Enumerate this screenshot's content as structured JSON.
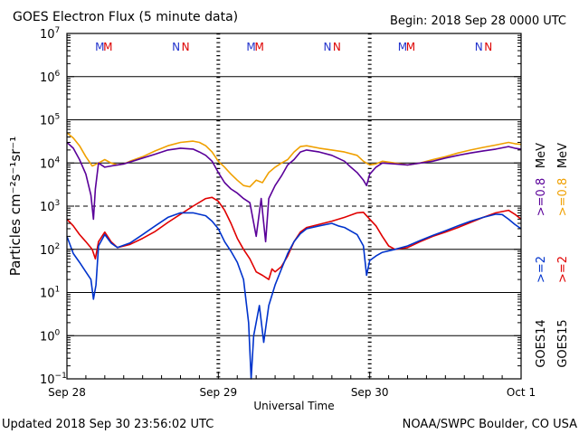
{
  "header": {
    "title": "GOES Electron Flux (5 minute data)",
    "begin": "Begin: 2018 Sep 28 0000 UTC"
  },
  "footer": {
    "updated": "Updated 2018 Sep 30 23:56:02 UTC",
    "credit": "NOAA/SWPC Boulder, CO USA"
  },
  "colors": {
    "goes14_08": "#5a0099",
    "goes15_08": "#f0a000",
    "goes14_2": "#0033cc",
    "goes15_2": "#e00000",
    "marker_m": [
      "#2233cc",
      "#dd0000"
    ],
    "marker_n": [
      "#2233cc",
      "#dd0000"
    ]
  },
  "chart_data": {
    "type": "line",
    "title": "GOES Electron Flux (5 minute data)",
    "xlabel": "Universal Time",
    "ylabel": "Particles cm⁻²s⁻¹sr⁻¹",
    "ylog": true,
    "xlim": [
      0,
      72
    ],
    "ylim": [
      0.1,
      10000000
    ],
    "grid": "horizontal at decades",
    "x_ticks": [
      {
        "t": 0,
        "label": "Sep 28"
      },
      {
        "t": 24,
        "label": "Sep 29"
      },
      {
        "t": 48,
        "label": "Sep 30"
      },
      {
        "t": 72,
        "label": "Oct 1"
      }
    ],
    "y_ticks": [
      {
        "v": 0.1,
        "base": "10",
        "exp": "−1"
      },
      {
        "v": 1,
        "base": "10",
        "exp": "0"
      },
      {
        "v": 10,
        "base": "10",
        "exp": "1"
      },
      {
        "v": 100,
        "base": "10",
        "exp": "2"
      },
      {
        "v": 1000,
        "base": "10",
        "exp": "3"
      },
      {
        "v": 10000,
        "base": "10",
        "exp": "4"
      },
      {
        "v": 100000,
        "base": "10",
        "exp": "5"
      },
      {
        "v": 1000000,
        "base": "10",
        "exp": "6"
      },
      {
        "v": 10000000,
        "base": "10",
        "exp": "7"
      }
    ],
    "threshold": 1000,
    "day_markers": [
      {
        "t": 5.2,
        "label": "M",
        "color_index": 0
      },
      {
        "t": 6.5,
        "label": "M",
        "color_index": 1
      },
      {
        "t": 17.3,
        "label": "N",
        "color_index": 0
      },
      {
        "t": 18.8,
        "label": "N",
        "color_index": 1
      },
      {
        "t": 29.2,
        "label": "M",
        "color_index": 0
      },
      {
        "t": 30.5,
        "label": "M",
        "color_index": 1
      },
      {
        "t": 41.3,
        "label": "N",
        "color_index": 0
      },
      {
        "t": 42.8,
        "label": "N",
        "color_index": 1
      },
      {
        "t": 53.2,
        "label": "M",
        "color_index": 0
      },
      {
        "t": 54.5,
        "label": "M",
        "color_index": 1
      },
      {
        "t": 65.3,
        "label": "N",
        "color_index": 0
      },
      {
        "t": 66.8,
        "label": "N",
        "color_index": 1
      }
    ],
    "legend": {
      "position": "right, vertical",
      "groups": [
        {
          "label": "GOES14",
          "items": [
            {
              "text": ">=2",
              "color_key": "goes14_2"
            },
            {
              "text": ">=0.8",
              "color_key": "goes14_08"
            }
          ]
        },
        {
          "label": "GOES15",
          "items": [
            {
              "text": ">=2",
              "color_key": "goes15_2"
            },
            {
              "text": ">=0.8",
              "color_key": "goes15_08"
            }
          ]
        }
      ],
      "unit": "MeV"
    },
    "series": [
      {
        "name": "GOES15 >=0.8 MeV",
        "color_key": "goes15_08",
        "points": [
          [
            0,
            50000
          ],
          [
            1,
            38000
          ],
          [
            2,
            25000
          ],
          [
            3,
            14000
          ],
          [
            4,
            8500
          ],
          [
            5,
            10000
          ],
          [
            6,
            12000
          ],
          [
            7,
            10000
          ],
          [
            8,
            9000
          ],
          [
            9,
            9500
          ],
          [
            10,
            11000
          ],
          [
            12,
            14000
          ],
          [
            14,
            19000
          ],
          [
            16,
            25000
          ],
          [
            18,
            30000
          ],
          [
            20,
            32000
          ],
          [
            21,
            30000
          ],
          [
            22,
            25000
          ],
          [
            23,
            18000
          ],
          [
            24,
            11000
          ],
          [
            25,
            8000
          ],
          [
            26,
            5500
          ],
          [
            27,
            4000
          ],
          [
            28,
            3000
          ],
          [
            29,
            2800
          ],
          [
            30,
            4000
          ],
          [
            31,
            3500
          ],
          [
            32,
            6000
          ],
          [
            33,
            8000
          ],
          [
            34,
            10000
          ],
          [
            35,
            12000
          ],
          [
            36,
            18000
          ],
          [
            37,
            24000
          ],
          [
            38,
            25000
          ],
          [
            40,
            22000
          ],
          [
            42,
            20000
          ],
          [
            44,
            18000
          ],
          [
            46,
            15000
          ],
          [
            47,
            11000
          ],
          [
            48,
            9000
          ],
          [
            49,
            9500
          ],
          [
            50,
            11000
          ],
          [
            52,
            10000
          ],
          [
            54,
            9000
          ],
          [
            56,
            10000
          ],
          [
            58,
            12000
          ],
          [
            60,
            14000
          ],
          [
            62,
            17000
          ],
          [
            64,
            20000
          ],
          [
            66,
            23000
          ],
          [
            68,
            26000
          ],
          [
            70,
            30000
          ],
          [
            71,
            28000
          ],
          [
            72,
            27000
          ]
        ]
      },
      {
        "name": "GOES14 >=0.8 MeV",
        "color_key": "goes14_08",
        "points": [
          [
            0,
            30000
          ],
          [
            1,
            22000
          ],
          [
            2,
            12000
          ],
          [
            3,
            5500
          ],
          [
            3.8,
            1800
          ],
          [
            4.2,
            500
          ],
          [
            4.5,
            2500
          ],
          [
            5,
            10000
          ],
          [
            6,
            8000
          ],
          [
            7,
            8500
          ],
          [
            8,
            9000
          ],
          [
            9,
            9500
          ],
          [
            10,
            10500
          ],
          [
            12,
            13000
          ],
          [
            14,
            16000
          ],
          [
            16,
            20000
          ],
          [
            18,
            22000
          ],
          [
            20,
            21000
          ],
          [
            21,
            18000
          ],
          [
            22,
            15000
          ],
          [
            23,
            11000
          ],
          [
            24,
            6000
          ],
          [
            25,
            3500
          ],
          [
            26,
            2500
          ],
          [
            27,
            2000
          ],
          [
            28,
            1500
          ],
          [
            29,
            1200
          ],
          [
            30,
            200
          ],
          [
            30.8,
            1500
          ],
          [
            31.5,
            150
          ],
          [
            32,
            1500
          ],
          [
            33,
            3000
          ],
          [
            34,
            5000
          ],
          [
            35,
            9000
          ],
          [
            36,
            12000
          ],
          [
            37,
            18000
          ],
          [
            38,
            20000
          ],
          [
            40,
            18000
          ],
          [
            42,
            15000
          ],
          [
            44,
            11000
          ],
          [
            45,
            8000
          ],
          [
            46,
            6000
          ],
          [
            47,
            4000
          ],
          [
            47.5,
            3000
          ],
          [
            48,
            5500
          ],
          [
            49,
            8000
          ],
          [
            50,
            10000
          ],
          [
            52,
            9500
          ],
          [
            54,
            9000
          ],
          [
            56,
            10000
          ],
          [
            58,
            11000
          ],
          [
            60,
            13000
          ],
          [
            62,
            15000
          ],
          [
            64,
            17000
          ],
          [
            66,
            19000
          ],
          [
            68,
            21000
          ],
          [
            70,
            24000
          ],
          [
            71,
            22000
          ],
          [
            72,
            21000
          ]
        ]
      },
      {
        "name": "GOES15 >=2 MeV",
        "color_key": "goes15_2",
        "points": [
          [
            0,
            500
          ],
          [
            1,
            350
          ],
          [
            2,
            220
          ],
          [
            3,
            150
          ],
          [
            4,
            100
          ],
          [
            4.5,
            60
          ],
          [
            5,
            150
          ],
          [
            6,
            250
          ],
          [
            7,
            150
          ],
          [
            8,
            110
          ],
          [
            10,
            130
          ],
          [
            12,
            180
          ],
          [
            14,
            260
          ],
          [
            16,
            420
          ],
          [
            18,
            650
          ],
          [
            20,
            1000
          ],
          [
            22,
            1500
          ],
          [
            23,
            1600
          ],
          [
            24,
            1300
          ],
          [
            25,
            800
          ],
          [
            26,
            400
          ],
          [
            27,
            180
          ],
          [
            28,
            100
          ],
          [
            29,
            60
          ],
          [
            30,
            30
          ],
          [
            31,
            25
          ],
          [
            32,
            20
          ],
          [
            32.5,
            35
          ],
          [
            33,
            30
          ],
          [
            34,
            40
          ],
          [
            35,
            70
          ],
          [
            36,
            150
          ],
          [
            37,
            250
          ],
          [
            38,
            320
          ],
          [
            40,
            380
          ],
          [
            42,
            450
          ],
          [
            44,
            550
          ],
          [
            46,
            700
          ],
          [
            47,
            720
          ],
          [
            48,
            500
          ],
          [
            49,
            350
          ],
          [
            50,
            200
          ],
          [
            51,
            120
          ],
          [
            52,
            100
          ],
          [
            54,
            110
          ],
          [
            56,
            150
          ],
          [
            58,
            200
          ],
          [
            60,
            250
          ],
          [
            62,
            320
          ],
          [
            64,
            420
          ],
          [
            66,
            550
          ],
          [
            68,
            700
          ],
          [
            70,
            800
          ],
          [
            71,
            650
          ],
          [
            72,
            500
          ]
        ]
      },
      {
        "name": "GOES14 >=2 MeV",
        "color_key": "goes14_2",
        "points": [
          [
            0,
            200
          ],
          [
            1,
            80
          ],
          [
            2,
            50
          ],
          [
            3,
            30
          ],
          [
            3.8,
            20
          ],
          [
            4.2,
            7
          ],
          [
            4.6,
            15
          ],
          [
            5,
            120
          ],
          [
            6,
            220
          ],
          [
            7,
            140
          ],
          [
            8,
            110
          ],
          [
            10,
            140
          ],
          [
            12,
            220
          ],
          [
            14,
            350
          ],
          [
            16,
            550
          ],
          [
            18,
            700
          ],
          [
            20,
            700
          ],
          [
            22,
            600
          ],
          [
            23,
            450
          ],
          [
            24,
            300
          ],
          [
            25,
            150
          ],
          [
            26,
            90
          ],
          [
            27,
            50
          ],
          [
            28,
            20
          ],
          [
            28.8,
            2
          ],
          [
            29.2,
            0.1
          ],
          [
            29.6,
            1
          ],
          [
            30.5,
            5
          ],
          [
            31.2,
            0.7
          ],
          [
            32,
            5
          ],
          [
            33,
            15
          ],
          [
            34,
            35
          ],
          [
            35,
            80
          ],
          [
            36,
            150
          ],
          [
            37,
            230
          ],
          [
            38,
            300
          ],
          [
            40,
            350
          ],
          [
            42,
            400
          ],
          [
            43,
            350
          ],
          [
            44,
            320
          ],
          [
            46,
            220
          ],
          [
            47,
            120
          ],
          [
            47.5,
            25
          ],
          [
            48,
            55
          ],
          [
            49,
            70
          ],
          [
            50,
            85
          ],
          [
            52,
            100
          ],
          [
            54,
            120
          ],
          [
            56,
            160
          ],
          [
            58,
            210
          ],
          [
            60,
            270
          ],
          [
            62,
            350
          ],
          [
            64,
            450
          ],
          [
            66,
            550
          ],
          [
            68,
            650
          ],
          [
            69,
            640
          ],
          [
            70,
            500
          ],
          [
            71,
            380
          ],
          [
            72,
            300
          ]
        ]
      }
    ]
  }
}
